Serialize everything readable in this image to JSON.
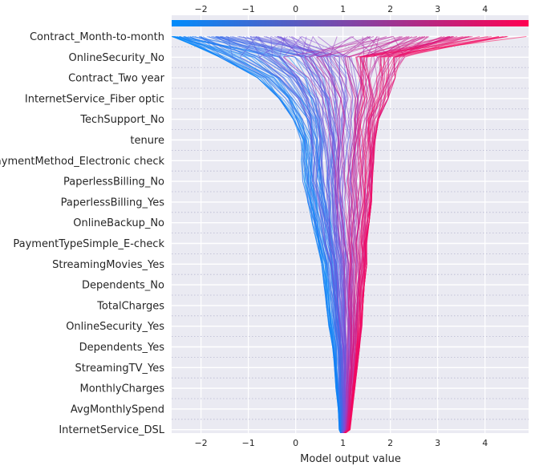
{
  "chart_data": {
    "type": "line",
    "subtype": "shap-decision-plot",
    "title": "",
    "xlabel": "Model output value",
    "ylabel": "",
    "xlim": [
      -2.62,
      4.92
    ],
    "x_ticks": [
      -2,
      -1,
      0,
      1,
      2,
      3,
      4
    ],
    "x_tick_labels": [
      "−2",
      "−1",
      "0",
      "1",
      "2",
      "3",
      "4"
    ],
    "grid": true,
    "features_top_to_bottom": [
      "Contract_Month-to-month",
      "OnlineSecurity_No",
      "Contract_Two year",
      "InternetService_Fiber optic",
      "TechSupport_No",
      "tenure",
      "PaymentMethod_Electronic check",
      "PaperlessBilling_No",
      "PaperlessBilling_Yes",
      "OnlineBackup_No",
      "PaymentTypeSimple_E-check",
      "StreamingMovies_Yes",
      "Dependents_No",
      "TotalCharges",
      "OnlineSecurity_Yes",
      "Dependents_Yes",
      "StreamingTV_Yes",
      "MonthlyCharges",
      "AvgMonthlySpend",
      "InternetService_DSL"
    ],
    "base_value": 1.0,
    "colors": {
      "low": "#008bfb",
      "high": "#ff0052",
      "background": "#eaeaf2",
      "grid": "#ffffff"
    },
    "envelope": {
      "description_note": "",
      "levels": [
        "base",
        "InternetService_DSL",
        "AvgMonthlySpend",
        "MonthlyCharges",
        "StreamingTV_Yes",
        "Dependents_Yes",
        "OnlineSecurity_Yes",
        "TotalCharges",
        "Dependents_No",
        "StreamingMovies_Yes",
        "PaymentTypeSimple_E-check",
        "OnlineBackup_No",
        "PaperlessBilling_Yes",
        "PaperlessBilling_No",
        "PaymentMethod_Electronic check",
        "tenure",
        "TechSupport_No",
        "InternetService_Fiber optic",
        "Contract_Two year",
        "OnlineSecurity_No",
        "Contract_Month-to-month"
      ],
      "min": [
        0.95,
        0.92,
        0.9,
        0.85,
        0.82,
        0.78,
        0.7,
        0.65,
        0.6,
        0.55,
        0.45,
        0.35,
        0.25,
        0.15,
        0.12,
        0.1,
        -0.05,
        -0.35,
        -0.8,
        -1.6,
        -2.62
      ],
      "max": [
        1.05,
        1.15,
        1.2,
        1.25,
        1.3,
        1.35,
        1.4,
        1.42,
        1.45,
        1.5,
        1.5,
        1.55,
        1.6,
        1.62,
        1.65,
        1.68,
        1.75,
        1.95,
        2.1,
        2.3,
        4.92
      ]
    }
  }
}
